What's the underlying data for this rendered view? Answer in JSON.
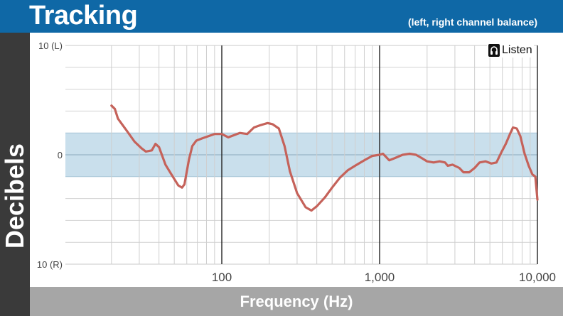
{
  "header": {
    "title": "Tracking",
    "subtitle": "(left, right channel balance)"
  },
  "logo": {
    "text": "Listen",
    "icon": "headphones-logo-icon"
  },
  "colors": {
    "header": "#0f68a6",
    "band": "#c9dfec",
    "curve": "#c5625a",
    "side_band": "#3a3a3a",
    "bottom_band": "#a6a6a6"
  },
  "chart_data": {
    "type": "line",
    "title": "Tracking",
    "subtitle": "(left, right channel balance)",
    "xlabel": "Frequency (Hz)",
    "ylabel": "Decibels",
    "x_scale": "log",
    "xlim": [
      20,
      10000
    ],
    "ylim": [
      -10,
      10
    ],
    "x_ticks": [
      {
        "value": 100,
        "label": "100"
      },
      {
        "value": 1000,
        "label": "1,000"
      },
      {
        "value": 10000,
        "label": "10,000"
      }
    ],
    "y_ticks": [
      {
        "value": 10,
        "label": "10 (L)"
      },
      {
        "value": 0,
        "label": "0"
      },
      {
        "value": -10,
        "label": "10 (R)"
      }
    ],
    "tolerance_band": [
      -2,
      2
    ],
    "grid": true,
    "series": [
      {
        "x": [
          20,
          21,
          22,
          25,
          28,
          31,
          33,
          36,
          38,
          40,
          44,
          48,
          53,
          56,
          58,
          62,
          65,
          69,
          75,
          90,
          100,
          110,
          130,
          145,
          160,
          175,
          195,
          210,
          230,
          250,
          270,
          300,
          340,
          370,
          400,
          450,
          500,
          560,
          630,
          700,
          800,
          900,
          1000,
          1050,
          1100,
          1150,
          1250,
          1400,
          1550,
          1700,
          1850,
          2000,
          2200,
          2400,
          2600,
          2700,
          2900,
          3200,
          3400,
          3700,
          4000,
          4300,
          4700,
          5100,
          5500,
          5900,
          6300,
          6700,
          7000,
          7400,
          7800,
          8300,
          8800,
          9300,
          9700,
          10000
        ],
        "y": [
          4.5,
          4.2,
          3.3,
          2.2,
          1.2,
          0.6,
          0.3,
          0.4,
          1.0,
          0.7,
          -0.9,
          -1.8,
          -2.8,
          -3.0,
          -2.7,
          -0.4,
          0.8,
          1.3,
          1.5,
          1.9,
          1.9,
          1.6,
          2.0,
          1.9,
          2.5,
          2.7,
          2.9,
          2.8,
          2.4,
          0.8,
          -1.5,
          -3.5,
          -4.8,
          -5.1,
          -4.7,
          -3.9,
          -3.0,
          -2.1,
          -1.4,
          -1.0,
          -0.5,
          -0.1,
          0.0,
          0.1,
          -0.2,
          -0.5,
          -0.3,
          0.0,
          0.1,
          0.0,
          -0.3,
          -0.6,
          -0.7,
          -0.6,
          -0.7,
          -1.0,
          -0.9,
          -1.2,
          -1.6,
          -1.6,
          -1.2,
          -0.7,
          -0.6,
          -0.8,
          -0.7,
          0.2,
          1.0,
          1.9,
          2.5,
          2.4,
          1.7,
          0.1,
          -1.0,
          -1.8,
          -2.0,
          -4.1
        ]
      }
    ]
  }
}
